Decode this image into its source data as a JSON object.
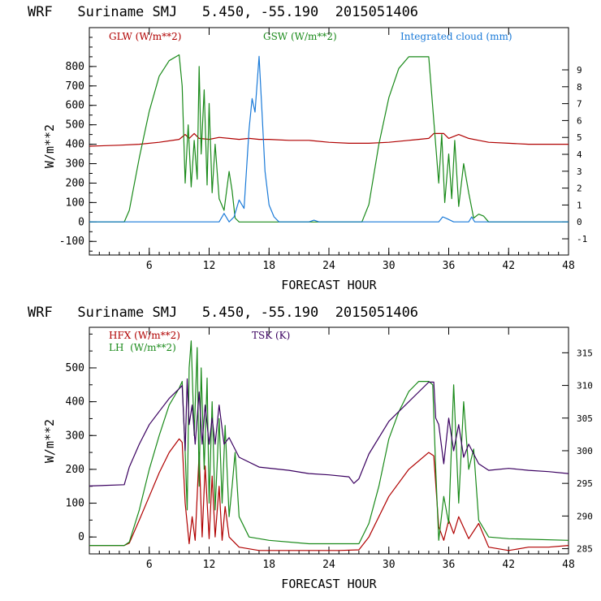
{
  "chart_data": [
    {
      "type": "line",
      "title": "WRF   Suriname SMJ   5.450, -55.190  2015051406",
      "xlabel": "FORECAST HOUR",
      "ylabel": "W/m**2",
      "xlim": [
        0,
        48
      ],
      "ylim": [
        -170,
        1000
      ],
      "xticks": [
        6,
        12,
        18,
        24,
        30,
        36,
        42,
        48
      ],
      "yticks": [
        -100,
        0,
        100,
        200,
        300,
        400,
        500,
        600,
        700,
        800
      ],
      "y2lim": [
        -1.96,
        11.5
      ],
      "y2ticks": [
        -1,
        0,
        1,
        2,
        3,
        4,
        5,
        6,
        7,
        8,
        9
      ],
      "legend": [
        {
          "label": "GLW (W/m**2)",
          "color": "#b00000"
        },
        {
          "label": "GSW (W/m**2)",
          "color": "#1a8a1a"
        },
        {
          "label": "Integrated cloud (mm)",
          "color": "#1a7ad8"
        }
      ],
      "series": [
        {
          "name": "GLW",
          "axis": "left",
          "color": "#b00000",
          "x": [
            0,
            3,
            5,
            7,
            9,
            9.6,
            10,
            10.5,
            11,
            12,
            13,
            14,
            15,
            16,
            17,
            18,
            20,
            22,
            24,
            26,
            28,
            30,
            32,
            34,
            34.5,
            35.5,
            36,
            37,
            38,
            39,
            40,
            42,
            44,
            46,
            48
          ],
          "y": [
            390,
            395,
            400,
            410,
            425,
            450,
            430,
            455,
            430,
            425,
            435,
            430,
            425,
            430,
            425,
            425,
            420,
            420,
            410,
            405,
            405,
            410,
            420,
            430,
            455,
            455,
            430,
            450,
            430,
            420,
            410,
            405,
            400,
            400,
            400
          ]
        },
        {
          "name": "GSW",
          "axis": "left",
          "color": "#1a8a1a",
          "x": [
            0,
            3.5,
            4,
            5,
            6,
            7,
            8,
            9,
            9.3,
            9.6,
            9.9,
            10.2,
            10.5,
            10.8,
            11,
            11.2,
            11.5,
            11.8,
            12,
            12.3,
            12.6,
            13,
            13.5,
            14,
            14.3,
            14.6,
            15,
            16,
            20,
            26,
            27.3,
            28,
            29,
            30,
            31,
            32,
            33,
            34,
            35,
            35.3,
            35.6,
            36,
            36.3,
            36.6,
            37,
            37.5,
            38,
            38.5,
            39,
            39.5,
            40,
            48
          ],
          "y": [
            0,
            0,
            60,
            330,
            570,
            750,
            830,
            860,
            700,
            200,
            500,
            180,
            420,
            220,
            800,
            350,
            680,
            190,
            610,
            150,
            400,
            120,
            60,
            260,
            160,
            20,
            0,
            0,
            0,
            0,
            0,
            90,
            400,
            640,
            790,
            850,
            850,
            850,
            200,
            450,
            100,
            350,
            120,
            420,
            80,
            300,
            150,
            20,
            40,
            30,
            0,
            0
          ]
        },
        {
          "name": "Integrated cloud",
          "axis": "right",
          "color": "#1a7ad8",
          "x": [
            0,
            13,
            13.5,
            14,
            14.5,
            15,
            15.5,
            16,
            16.3,
            16.6,
            17,
            17.3,
            17.6,
            18,
            18.5,
            19,
            22,
            22.5,
            23,
            35,
            35.4,
            35.8,
            36.5,
            38,
            38.3,
            38.6,
            48
          ],
          "y": [
            0,
            0,
            0.5,
            0,
            0.3,
            1.3,
            0.8,
            5.5,
            7.3,
            6.5,
            9.8,
            6.5,
            3.0,
            1.0,
            0.3,
            0,
            0,
            0.1,
            0,
            0,
            0.3,
            0.2,
            0,
            0,
            0.3,
            0,
            0
          ]
        }
      ]
    },
    {
      "type": "line",
      "title": "WRF   Suriname SMJ   5.450, -55.190  2015051406",
      "xlabel": "FORECAST HOUR",
      "ylabel": "W/m**2",
      "xlim": [
        0,
        48
      ],
      "ylim": [
        -50,
        620
      ],
      "xticks": [
        6,
        12,
        18,
        24,
        30,
        36,
        42,
        48
      ],
      "yticks": [
        0,
        100,
        200,
        300,
        400,
        500
      ],
      "y2lim": [
        284.2,
        318.9
      ],
      "y2ticks": [
        285,
        290,
        295,
        300,
        305,
        310,
        315
      ],
      "legend": [
        {
          "label": "HFX (W/m**2)",
          "color": "#b00000"
        },
        {
          "label": "LH  (W/m**2)",
          "color": "#1a8a1a"
        },
        {
          "label": "TSK (K)",
          "color": "#3a0060"
        }
      ],
      "series": [
        {
          "name": "HFX",
          "axis": "left",
          "color": "#b00000",
          "x": [
            0,
            3.5,
            4,
            5,
            6,
            7,
            8,
            9,
            9.3,
            9.6,
            10,
            10.3,
            10.6,
            11,
            11.3,
            11.6,
            12,
            12.3,
            12.6,
            13,
            13.3,
            13.6,
            14,
            15,
            17,
            20,
            25,
            27,
            28,
            30,
            32,
            34,
            34.5,
            35,
            35.5,
            36,
            36.5,
            37,
            38,
            39,
            40,
            42,
            44,
            46,
            48
          ],
          "y": [
            -25,
            -25,
            -18,
            50,
            120,
            190,
            250,
            290,
            280,
            100,
            -20,
            60,
            -10,
            250,
            0,
            210,
            -5,
            180,
            0,
            150,
            -10,
            90,
            0,
            -30,
            -40,
            -40,
            -40,
            -38,
            0,
            120,
            200,
            250,
            240,
            30,
            -10,
            50,
            10,
            60,
            -5,
            40,
            -30,
            -40,
            -30,
            -30,
            -25
          ]
        },
        {
          "name": "LH",
          "axis": "left",
          "color": "#1a8a1a",
          "x": [
            0,
            3.5,
            4,
            5,
            6,
            7,
            8,
            9,
            9.3,
            9.6,
            9.8,
            10,
            10.2,
            10.5,
            10.8,
            11,
            11.2,
            11.5,
            11.8,
            12,
            12.3,
            12.6,
            13,
            13.3,
            13.6,
            14,
            14.3,
            14.6,
            15,
            16,
            18,
            22,
            24,
            27,
            28,
            29,
            30,
            31,
            32,
            33,
            34,
            34.4,
            34.7,
            35,
            35.5,
            36,
            36.5,
            37,
            37.5,
            38,
            38.5,
            39,
            40,
            42,
            48
          ],
          "y": [
            -25,
            -25,
            -15,
            80,
            200,
            300,
            390,
            440,
            460,
            250,
            80,
            500,
            580,
            300,
            560,
            150,
            500,
            200,
            470,
            100,
            400,
            80,
            350,
            100,
            330,
            60,
            150,
            250,
            60,
            0,
            -10,
            -20,
            -20,
            -20,
            40,
            150,
            290,
            370,
            430,
            460,
            460,
            450,
            200,
            -10,
            120,
            40,
            450,
            100,
            400,
            200,
            260,
            50,
            0,
            -5,
            -10
          ]
        },
        {
          "name": "TSK",
          "axis": "right",
          "color": "#3a0060",
          "x": [
            0,
            3.5,
            4,
            5,
            6,
            7,
            8,
            9,
            9.3,
            9.6,
            9.8,
            10,
            10.3,
            10.6,
            11,
            11.3,
            11.6,
            12,
            12.3,
            12.6,
            13,
            13.5,
            14,
            15,
            17,
            20,
            22,
            24,
            26,
            26.5,
            27,
            28,
            30,
            32,
            34,
            34.5,
            34.7,
            35,
            35.5,
            36,
            36.5,
            37,
            37.5,
            38,
            39,
            40,
            42,
            44,
            46,
            48
          ],
          "y": [
            294.6,
            294.8,
            297.5,
            301,
            304,
            306,
            308,
            309.5,
            310,
            300,
            311,
            304,
            307,
            301,
            309,
            301,
            307,
            301,
            305,
            301,
            307,
            301,
            302,
            299,
            297.5,
            297,
            296.5,
            296.3,
            296,
            295,
            295.7,
            299.5,
            304.5,
            307.5,
            310.5,
            310.5,
            305,
            304,
            298,
            305,
            300,
            304,
            299,
            301,
            298,
            297,
            297.3,
            297,
            296.8,
            296.5
          ]
        }
      ]
    }
  ]
}
